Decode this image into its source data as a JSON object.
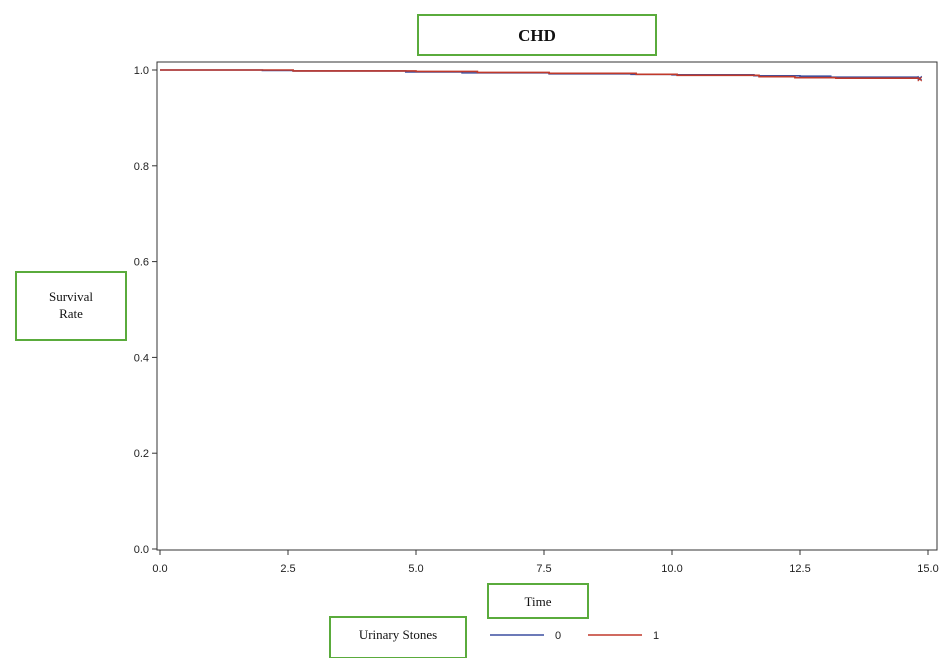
{
  "chart_data": {
    "type": "line",
    "title": "CHD",
    "xlabel": "Time",
    "ylabel": "Survival Rate",
    "xlim": [
      0,
      15
    ],
    "ylim": [
      0,
      1
    ],
    "x_ticks": [
      0,
      2.5,
      5,
      7.5,
      10,
      12.5,
      15
    ],
    "x_tick_labels": [
      "0.0",
      "2.5",
      "5.0",
      "7.5",
      "10.0",
      "12.5",
      "15.0"
    ],
    "y_ticks": [
      0,
      0.2,
      0.4,
      0.6,
      0.8,
      1.0
    ],
    "y_tick_labels": [
      "0.0",
      "0.2",
      "0.4",
      "0.6",
      "0.8",
      "1.0"
    ],
    "grid": false,
    "legend": {
      "title": "Urinary Stones",
      "placement": "bottom"
    },
    "series": [
      {
        "name": "0",
        "color": "#3b4fa0",
        "x": [
          0,
          2.0,
          2.6,
          4.8,
          5.9,
          7.6,
          9.2,
          10.0,
          11.6,
          12.5,
          13.1,
          14.8
        ],
        "y": [
          1.0,
          0.999,
          0.998,
          0.996,
          0.994,
          0.992,
          0.991,
          0.99,
          0.988,
          0.987,
          0.985,
          0.983
        ]
      },
      {
        "name": "1",
        "color": "#c0392b",
        "x": [
          0,
          2.6,
          5.0,
          6.2,
          7.6,
          9.3,
          10.1,
          11.7,
          12.4,
          13.2,
          14.8
        ],
        "y": [
          1.0,
          0.998,
          0.997,
          0.995,
          0.993,
          0.991,
          0.989,
          0.986,
          0.984,
          0.983,
          0.981
        ]
      }
    ]
  }
}
